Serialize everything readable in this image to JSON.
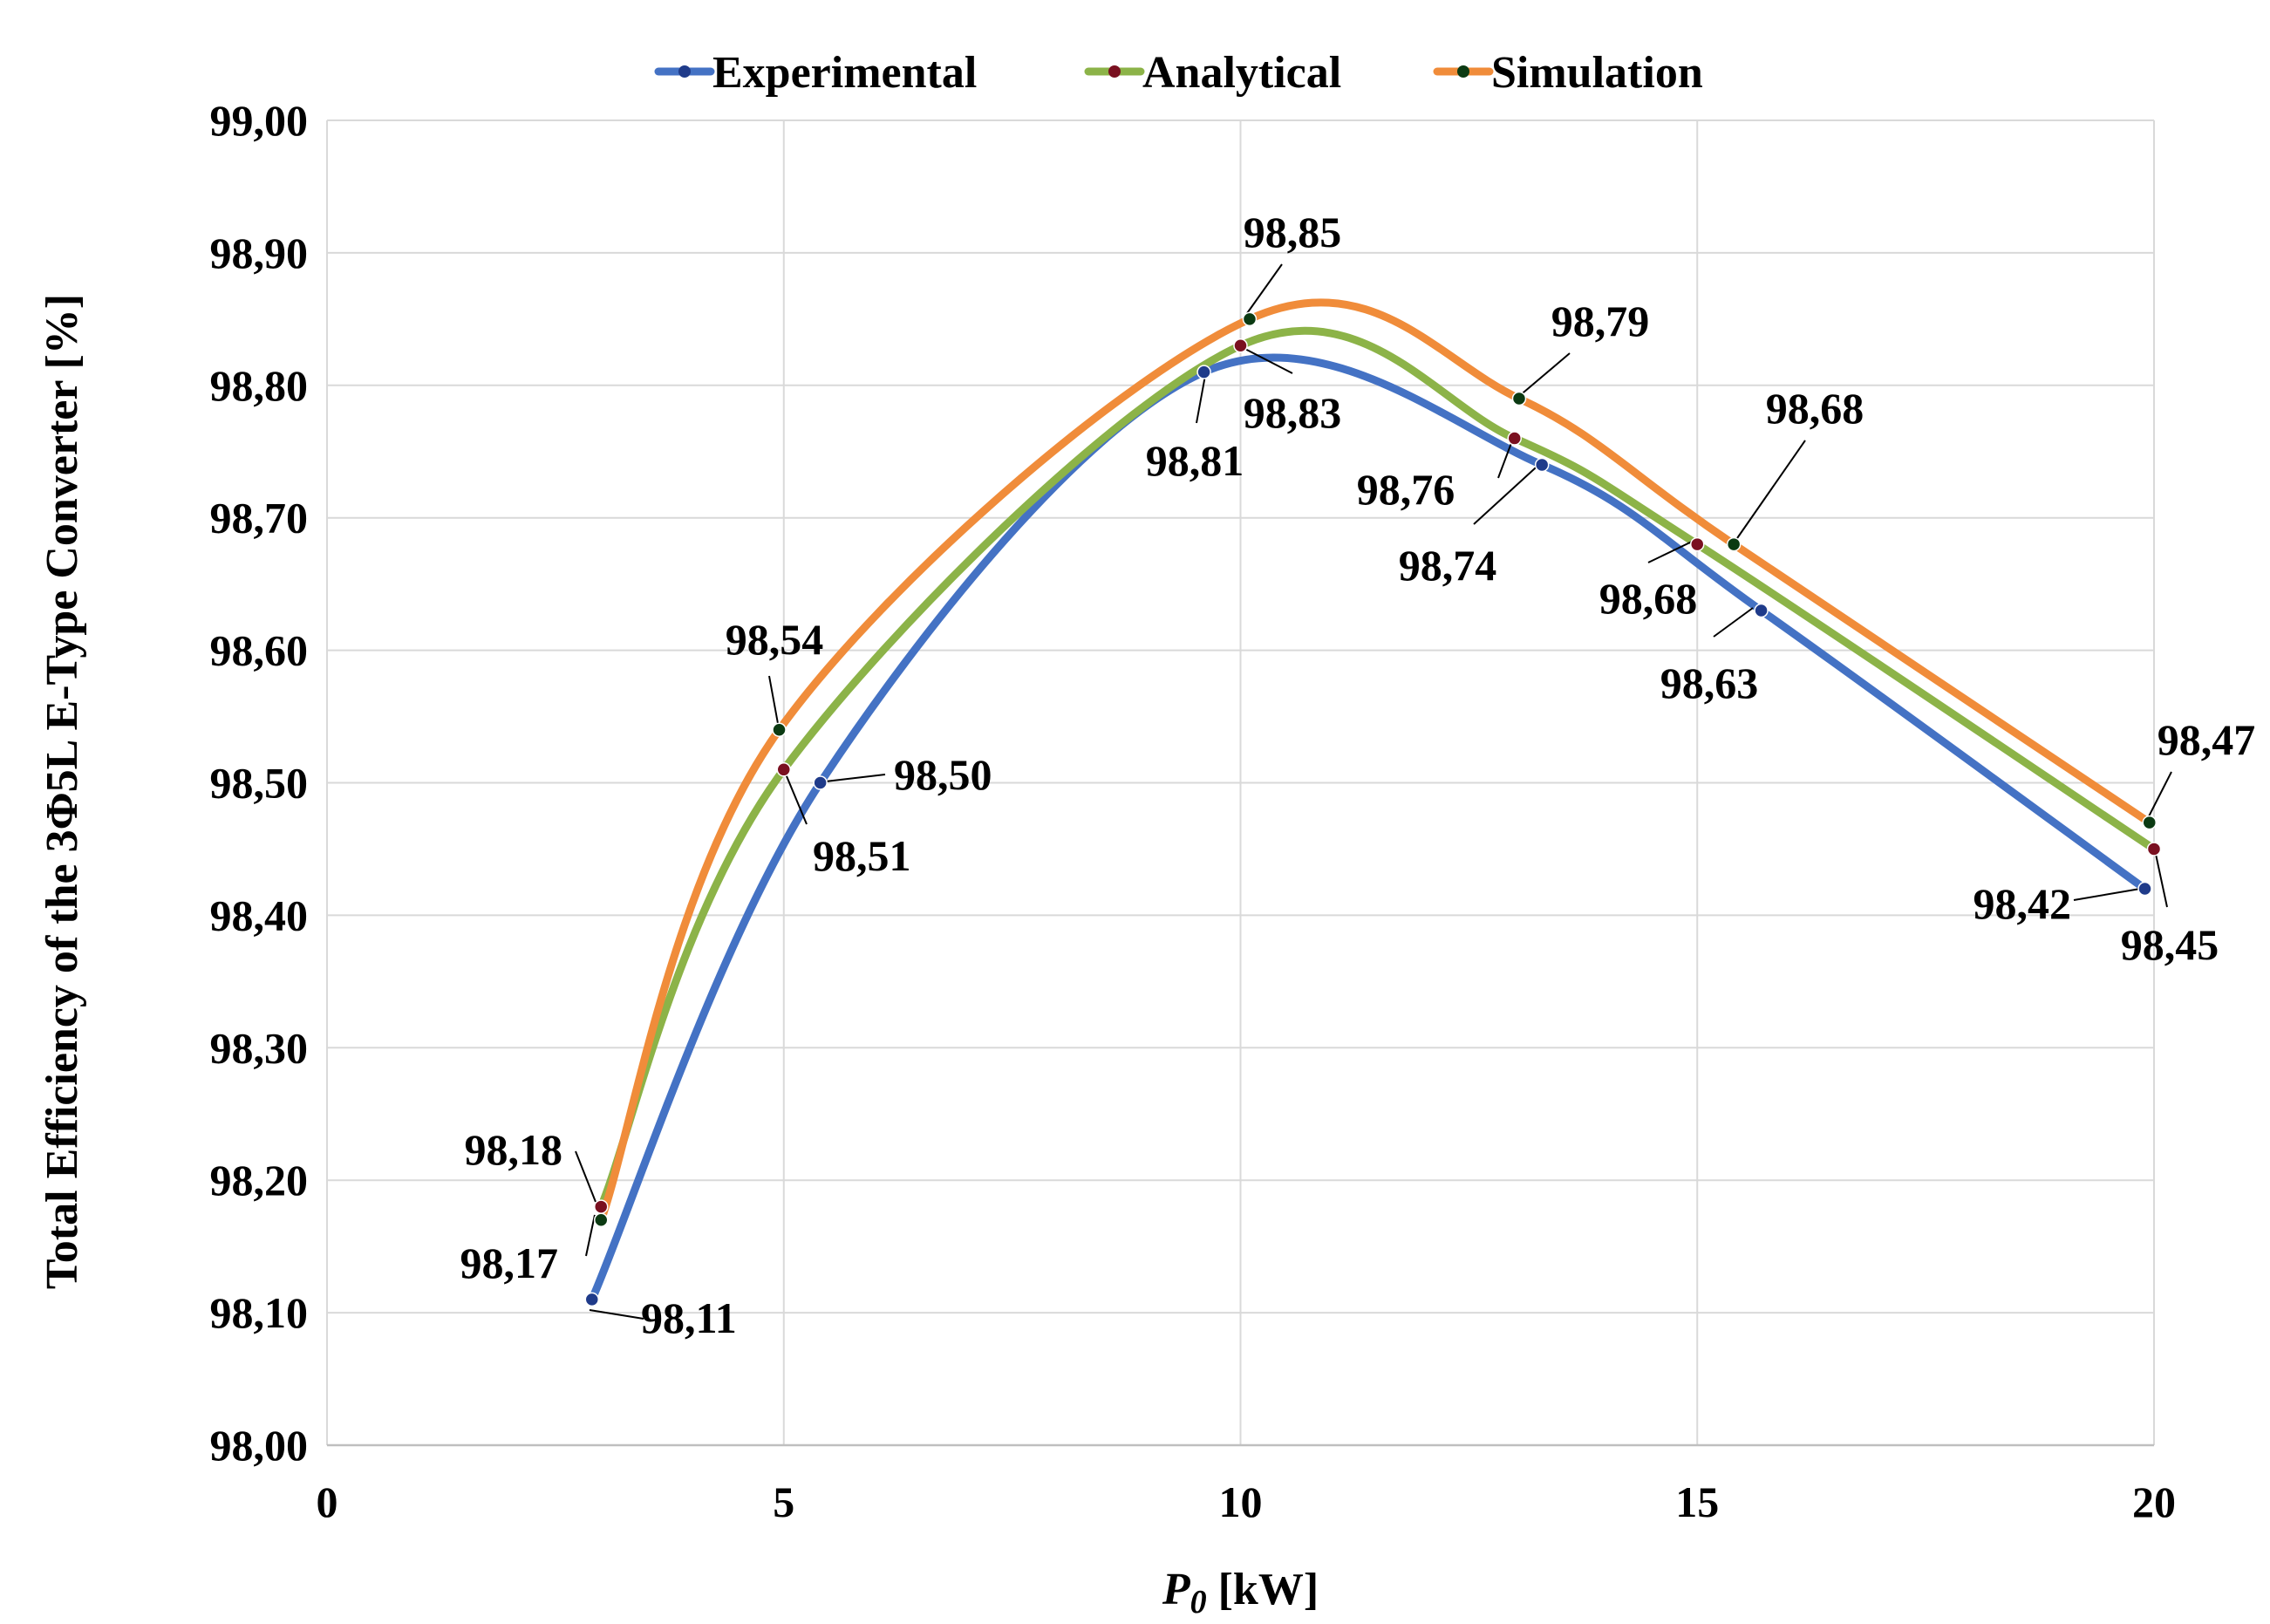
{
  "chart_data": {
    "type": "line",
    "xlabel": {
      "main": "P",
      "sub": "0",
      "unit": " [kW]"
    },
    "ylabel": "Total Efficiency of the 3Φ5L E-Type Converter [%]",
    "xlim": [
      0,
      20
    ],
    "ylim": [
      98.0,
      99.0
    ],
    "x_ticks": [
      {
        "value": 0,
        "label": "0"
      },
      {
        "value": 5,
        "label": "5"
      },
      {
        "value": 10,
        "label": "10"
      },
      {
        "value": 15,
        "label": "15"
      },
      {
        "value": 20,
        "label": "20"
      }
    ],
    "y_ticks": [
      {
        "value": 98.0,
        "label": "98,00"
      },
      {
        "value": 98.1,
        "label": "98,10"
      },
      {
        "value": 98.2,
        "label": "98,20"
      },
      {
        "value": 98.3,
        "label": "98,30"
      },
      {
        "value": 98.4,
        "label": "98,40"
      },
      {
        "value": 98.5,
        "label": "98,50"
      },
      {
        "value": 98.6,
        "label": "98,60"
      },
      {
        "value": 98.7,
        "label": "98,70"
      },
      {
        "value": 98.8,
        "label": "98,80"
      },
      {
        "value": 98.9,
        "label": "98,90"
      },
      {
        "value": 99.0,
        "label": "99,00"
      }
    ],
    "grid": true,
    "legend_position": "top",
    "series": [
      {
        "name": "Experimental",
        "color": "#4472C4",
        "marker_color": "#1f3b8a",
        "points": [
          {
            "x": 2.9,
            "y": 98.11,
            "label": "98,11"
          },
          {
            "x": 5.4,
            "y": 98.5,
            "label": "98,50"
          },
          {
            "x": 9.6,
            "y": 98.81,
            "label": "98,81"
          },
          {
            "x": 13.3,
            "y": 98.74,
            "label": "98,74"
          },
          {
            "x": 15.7,
            "y": 98.63,
            "label": "98,63"
          },
          {
            "x": 19.9,
            "y": 98.42,
            "label": "98,42"
          }
        ]
      },
      {
        "name": "Analytical",
        "color": "#8CB348",
        "marker_color": "#7a1020",
        "points": [
          {
            "x": 3.0,
            "y": 98.18,
            "label": "98,18"
          },
          {
            "x": 5.0,
            "y": 98.51,
            "label": "98,51"
          },
          {
            "x": 10.0,
            "y": 98.83,
            "label": "98,83"
          },
          {
            "x": 13.0,
            "y": 98.76,
            "label": "98,76"
          },
          {
            "x": 15.0,
            "y": 98.68,
            "label": "98,68"
          },
          {
            "x": 20.0,
            "y": 98.45,
            "label": "98,45"
          }
        ]
      },
      {
        "name": "Simulation",
        "color": "#F08C3A",
        "marker_color": "#0b3a12",
        "points": [
          {
            "x": 3.0,
            "y": 98.17,
            "label": "98,17"
          },
          {
            "x": 4.95,
            "y": 98.54,
            "label": "98,54"
          },
          {
            "x": 10.1,
            "y": 98.85,
            "label": "98,85"
          },
          {
            "x": 13.05,
            "y": 98.79,
            "label": "98,79"
          },
          {
            "x": 15.4,
            "y": 98.68,
            "label": "98,68"
          },
          {
            "x": 19.95,
            "y": 98.47,
            "label": "98,47"
          }
        ]
      }
    ]
  }
}
